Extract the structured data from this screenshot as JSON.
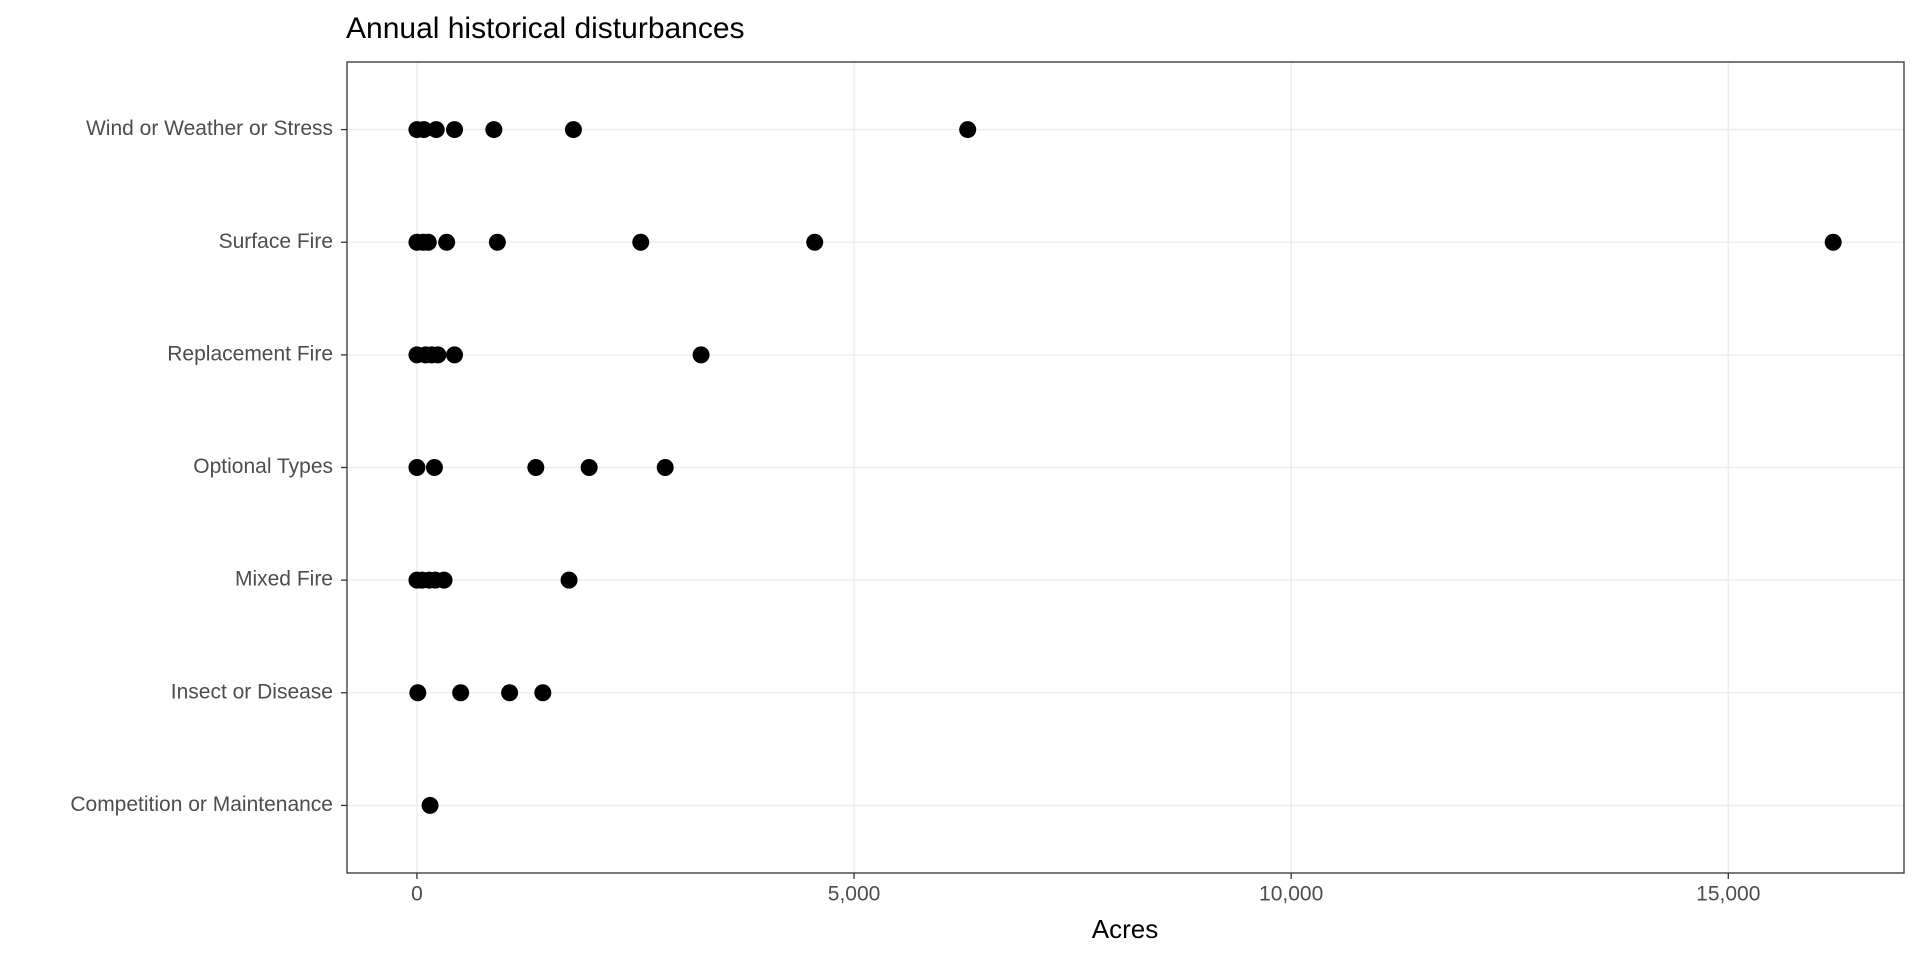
{
  "chart_data": {
    "type": "dot",
    "title": "Annual historical disturbances",
    "x_label": "Acres",
    "categories": [
      "Wind or Weather or Stress",
      "Surface Fire",
      "Replacement Fire",
      "Optional Types",
      "Mixed Fire",
      "Insect or Disease",
      "Competition or Maintenance"
    ],
    "values": [
      [
        0,
        80,
        220,
        430,
        880,
        1790,
        6300
      ],
      [
        0,
        70,
        130,
        340,
        920,
        2560,
        4550,
        16200
      ],
      [
        0,
        100,
        170,
        240,
        430,
        3250
      ],
      [
        0,
        200,
        1360,
        1970,
        2840
      ],
      [
        0,
        60,
        140,
        210,
        310,
        1740
      ],
      [
        10,
        500,
        1060,
        1440
      ],
      [
        150
      ]
    ],
    "color": "#000000",
    "xlim": [
      -800,
      17010
    ],
    "xticks": [
      0,
      {
        "value": 5000,
        "label": "5,000"
      },
      {
        "value": 10000,
        "label": "10,000"
      },
      {
        "value": 15000,
        "label": "15,000"
      }
    ],
    "grid": true
  }
}
